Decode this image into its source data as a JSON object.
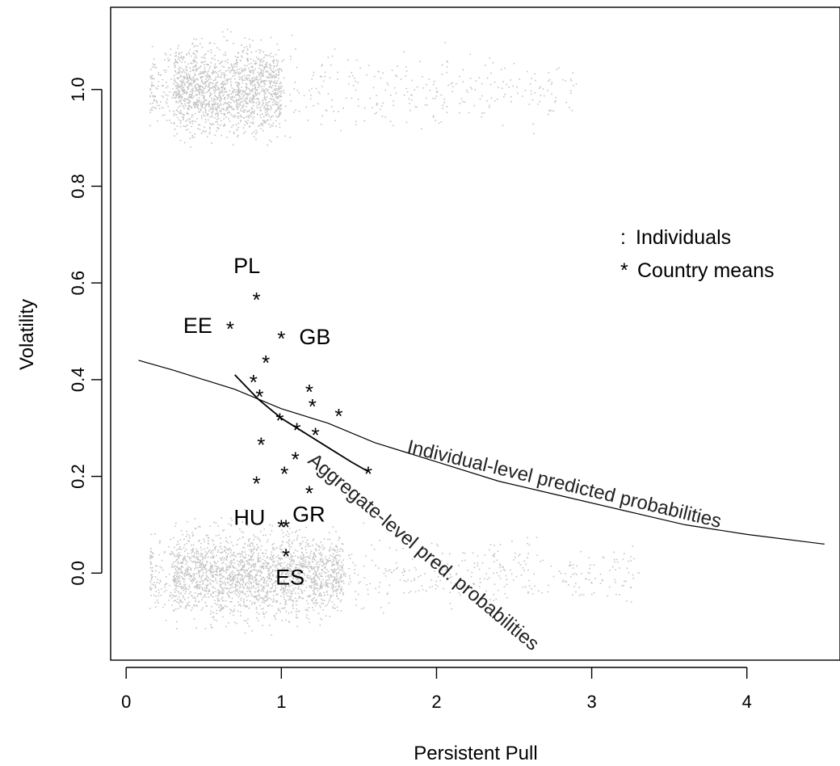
{
  "chart_data": {
    "type": "scatter",
    "xlabel": "Persistent Pull",
    "ylabel": "Volatility",
    "xlim": [
      -0.1,
      4.6
    ],
    "ylim": [
      -0.18,
      1.17
    ],
    "x_ticks": [
      {
        "value": 0,
        "label": "0"
      },
      {
        "value": 1,
        "label": "1"
      },
      {
        "value": 2,
        "label": "2"
      },
      {
        "value": 3,
        "label": "3"
      },
      {
        "value": 4,
        "label": "4"
      }
    ],
    "y_ticks": [
      {
        "value": 0.0,
        "label": "0.0"
      },
      {
        "value": 0.2,
        "label": "0.2"
      },
      {
        "value": 0.4,
        "label": "0.4"
      },
      {
        "value": 0.6,
        "label": "0.6"
      },
      {
        "value": 0.8,
        "label": "0.8"
      },
      {
        "value": 1.0,
        "label": "1.0"
      }
    ],
    "legend": {
      "placement": "right",
      "entries": [
        {
          "marker": ":",
          "label": "Individuals"
        },
        {
          "marker": "*",
          "label": "Country means"
        }
      ]
    },
    "individual_bands": [
      {
        "y": 0.0,
        "x_range": [
          0.15,
          3.3
        ],
        "dense_x": [
          0.3,
          1.4
        ]
      },
      {
        "y": 1.0,
        "x_range": [
          0.15,
          2.9
        ],
        "dense_x": [
          0.3,
          1.0
        ]
      }
    ],
    "country_means": [
      {
        "x": 0.84,
        "y": 0.57,
        "label": "PL"
      },
      {
        "x": 0.67,
        "y": 0.51,
        "label": "EE"
      },
      {
        "x": 1.0,
        "y": 0.49,
        "label": "GB"
      },
      {
        "x": 0.9,
        "y": 0.44,
        "label": ""
      },
      {
        "x": 0.82,
        "y": 0.4,
        "label": ""
      },
      {
        "x": 0.86,
        "y": 0.37,
        "label": ""
      },
      {
        "x": 1.18,
        "y": 0.38,
        "label": ""
      },
      {
        "x": 1.2,
        "y": 0.35,
        "label": ""
      },
      {
        "x": 1.37,
        "y": 0.33,
        "label": ""
      },
      {
        "x": 0.99,
        "y": 0.32,
        "label": ""
      },
      {
        "x": 1.1,
        "y": 0.3,
        "label": ""
      },
      {
        "x": 1.22,
        "y": 0.29,
        "label": ""
      },
      {
        "x": 0.87,
        "y": 0.27,
        "label": ""
      },
      {
        "x": 1.09,
        "y": 0.24,
        "label": ""
      },
      {
        "x": 1.02,
        "y": 0.21,
        "label": ""
      },
      {
        "x": 1.56,
        "y": 0.21,
        "label": ""
      },
      {
        "x": 0.84,
        "y": 0.19,
        "label": ""
      },
      {
        "x": 1.18,
        "y": 0.17,
        "label": ""
      },
      {
        "x": 1.03,
        "y": 0.1,
        "label": "GR"
      },
      {
        "x": 1.0,
        "y": 0.1,
        "label": "HU"
      },
      {
        "x": 1.03,
        "y": 0.04,
        "label": "ES"
      }
    ],
    "series": [
      {
        "name": "Individual-level predicted probabilities",
        "x": [
          0.08,
          0.3,
          0.5,
          0.7,
          1.0,
          1.3,
          1.6,
          2.0,
          2.4,
          2.8,
          3.2,
          3.6,
          4.0,
          4.5
        ],
        "y": [
          0.44,
          0.42,
          0.4,
          0.38,
          0.34,
          0.31,
          0.27,
          0.23,
          0.19,
          0.16,
          0.13,
          0.1,
          0.08,
          0.06
        ]
      },
      {
        "name": "Aggregate-level pred. probabilities",
        "x": [
          0.7,
          0.85,
          1.0,
          1.15,
          1.3,
          1.45,
          1.56
        ],
        "y": [
          0.41,
          0.36,
          0.32,
          0.29,
          0.26,
          0.23,
          0.21
        ]
      }
    ],
    "annotations": [
      {
        "text": "Individual-level predicted probabilities"
      },
      {
        "text": "Aggregate-level pred. probabilities"
      }
    ]
  }
}
